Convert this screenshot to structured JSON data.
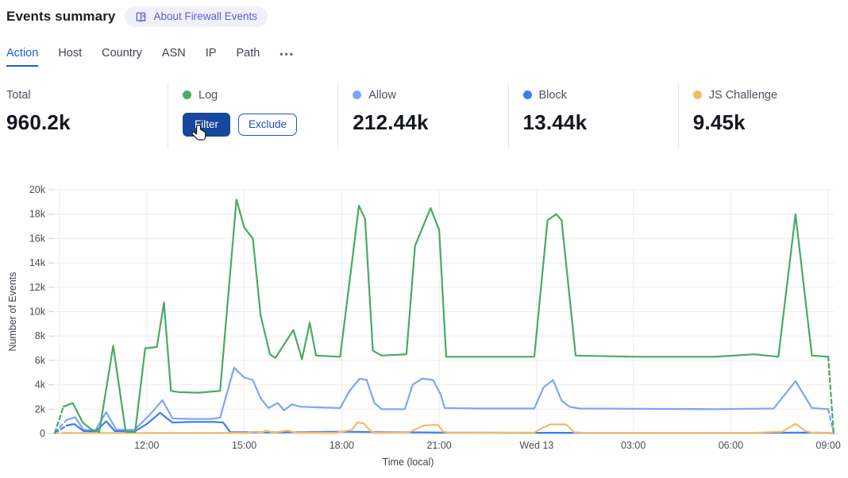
{
  "header": {
    "title": "Events summary",
    "about_label": "About Firewall Events"
  },
  "tabs": {
    "items": [
      {
        "label": "Action",
        "active": true
      },
      {
        "label": "Host",
        "active": false
      },
      {
        "label": "Country",
        "active": false
      },
      {
        "label": "ASN",
        "active": false
      },
      {
        "label": "IP",
        "active": false
      },
      {
        "label": "Path",
        "active": false
      }
    ],
    "more": "•••"
  },
  "stats": {
    "cards": [
      {
        "id": "total",
        "label": "Total",
        "value": "960.2k"
      },
      {
        "id": "log",
        "label": "Log",
        "dot_color": "#47ab63",
        "buttons": [
          {
            "id": "filter",
            "label": "Filter",
            "style": "primary"
          },
          {
            "id": "exclude",
            "label": "Exclude",
            "style": "secondary"
          }
        ],
        "cursor": true
      },
      {
        "id": "allow",
        "label": "Allow",
        "value": "212.44k",
        "dot_color": "#7ea6f2"
      },
      {
        "id": "block",
        "label": "Block",
        "value": "13.44k",
        "dot_color": "#3c7ff0"
      },
      {
        "id": "js-challenge",
        "label": "JS Challenge",
        "value": "9.45k",
        "dot_color": "#f1bb69"
      }
    ]
  },
  "chart_data": {
    "type": "line",
    "xlabel": "Time (local)",
    "ylabel": "Number of Events",
    "ylim": [
      0,
      20000
    ],
    "grid": true,
    "y_ticks": [
      {
        "label": "0",
        "v": 0
      },
      {
        "label": "2k",
        "v": 2
      },
      {
        "label": "4k",
        "v": 4
      },
      {
        "label": "6k",
        "v": 6
      },
      {
        "label": "8k",
        "v": 8
      },
      {
        "label": "10k",
        "v": 10
      },
      {
        "label": "12k",
        "v": 12
      },
      {
        "label": "14k",
        "v": 14
      },
      {
        "label": "16k",
        "v": 16
      },
      {
        "label": "18k",
        "v": 18
      },
      {
        "label": "20k",
        "v": 20
      }
    ],
    "x_ticks": [
      {
        "label": "12:00",
        "f": 0.119
      },
      {
        "label": "15:00",
        "f": 0.244
      },
      {
        "label": "18:00",
        "f": 0.369
      },
      {
        "label": "21:00",
        "f": 0.494
      },
      {
        "label": "Wed 13",
        "f": 0.619
      },
      {
        "label": "03:00",
        "f": 0.743
      },
      {
        "label": "06:00",
        "f": 0.868
      },
      {
        "label": "09:00",
        "f": 0.993
      }
    ],
    "extra_vertical_gridlines": [
      0.007
    ],
    "series": [
      {
        "id": "allow",
        "name": "Allow",
        "color": "#7ea6f2",
        "pre_dashed": [
          [
            0.001,
            0.1
          ],
          [
            0.016,
            1.1
          ]
        ],
        "points": [
          [
            0.016,
            1.1
          ],
          [
            0.027,
            1.35
          ],
          [
            0.038,
            0.3
          ],
          [
            0.053,
            0.25
          ],
          [
            0.067,
            1.76
          ],
          [
            0.08,
            0.3
          ],
          [
            0.103,
            0.3
          ],
          [
            0.119,
            1.3
          ],
          [
            0.128,
            1.9
          ],
          [
            0.139,
            2.74
          ],
          [
            0.152,
            1.24
          ],
          [
            0.175,
            1.2
          ],
          [
            0.201,
            1.2
          ],
          [
            0.213,
            1.3
          ],
          [
            0.231,
            5.4
          ],
          [
            0.244,
            4.6
          ],
          [
            0.255,
            4.4
          ],
          [
            0.265,
            2.9
          ],
          [
            0.275,
            2.1
          ],
          [
            0.287,
            2.5
          ],
          [
            0.295,
            1.9
          ],
          [
            0.305,
            2.4
          ],
          [
            0.316,
            2.2
          ],
          [
            0.338,
            2.15
          ],
          [
            0.367,
            2.1
          ],
          [
            0.379,
            3.5
          ],
          [
            0.392,
            4.5
          ],
          [
            0.401,
            4.4
          ],
          [
            0.411,
            2.5
          ],
          [
            0.42,
            2.0
          ],
          [
            0.45,
            2.0
          ],
          [
            0.46,
            4.0
          ],
          [
            0.472,
            4.5
          ],
          [
            0.486,
            4.4
          ],
          [
            0.496,
            3.2
          ],
          [
            0.501,
            2.1
          ],
          [
            0.542,
            2.05
          ],
          [
            0.616,
            2.05
          ],
          [
            0.628,
            3.8
          ],
          [
            0.64,
            4.4
          ],
          [
            0.651,
            2.7
          ],
          [
            0.661,
            2.2
          ],
          [
            0.674,
            2.05
          ],
          [
            0.847,
            2.0
          ],
          [
            0.923,
            2.05
          ],
          [
            0.951,
            4.3
          ],
          [
            0.972,
            2.1
          ],
          [
            0.993,
            2.0
          ]
        ],
        "post_dashed": [
          [
            0.993,
            2.0
          ],
          [
            1.0,
            0
          ]
        ]
      },
      {
        "id": "block",
        "name": "Block",
        "color": "#3c7ff0",
        "pre_dashed": [
          [
            0.001,
            0.05
          ],
          [
            0.016,
            0.65
          ]
        ],
        "points": [
          [
            0.016,
            0.65
          ],
          [
            0.026,
            0.78
          ],
          [
            0.038,
            0.2
          ],
          [
            0.053,
            0.15
          ],
          [
            0.067,
            1.0
          ],
          [
            0.078,
            0.2
          ],
          [
            0.103,
            0.15
          ],
          [
            0.119,
            0.78
          ],
          [
            0.136,
            1.7
          ],
          [
            0.152,
            0.9
          ],
          [
            0.175,
            0.95
          ],
          [
            0.206,
            0.95
          ],
          [
            0.217,
            0.9
          ],
          [
            0.226,
            0.12
          ],
          [
            0.287,
            0.1
          ],
          [
            0.367,
            0.15
          ],
          [
            0.42,
            0.12
          ],
          [
            0.503,
            0.08
          ],
          [
            0.616,
            0.06
          ],
          [
            0.745,
            0.06
          ],
          [
            0.898,
            0.05
          ],
          [
            0.951,
            0.08
          ],
          [
            0.993,
            0.06
          ]
        ],
        "post_dashed": [
          [
            0.993,
            0.06
          ],
          [
            1.0,
            0
          ]
        ]
      },
      {
        "id": "js-challenge",
        "name": "JS Challenge",
        "color": "#f1bb69",
        "pre_dashed": [
          [
            0.001,
            0.02
          ],
          [
            0.016,
            0.05
          ]
        ],
        "points": [
          [
            0.016,
            0.05
          ],
          [
            0.103,
            0.04
          ],
          [
            0.15,
            0.05
          ],
          [
            0.226,
            0.05
          ],
          [
            0.248,
            0.06
          ],
          [
            0.254,
            0.15
          ],
          [
            0.26,
            0.15
          ],
          [
            0.266,
            0.06
          ],
          [
            0.27,
            0.2
          ],
          [
            0.275,
            0.2
          ],
          [
            0.281,
            0.06
          ],
          [
            0.3,
            0.25
          ],
          [
            0.31,
            0.08
          ],
          [
            0.36,
            0.06
          ],
          [
            0.382,
            0.3
          ],
          [
            0.389,
            0.9
          ],
          [
            0.397,
            0.85
          ],
          [
            0.406,
            0.2
          ],
          [
            0.412,
            0.07
          ],
          [
            0.455,
            0.1
          ],
          [
            0.474,
            0.65
          ],
          [
            0.481,
            0.7
          ],
          [
            0.493,
            0.7
          ],
          [
            0.499,
            0.15
          ],
          [
            0.506,
            0.07
          ],
          [
            0.616,
            0.07
          ],
          [
            0.623,
            0.35
          ],
          [
            0.636,
            0.75
          ],
          [
            0.657,
            0.75
          ],
          [
            0.667,
            0.1
          ],
          [
            0.68,
            0.06
          ],
          [
            0.745,
            0.06
          ],
          [
            0.898,
            0.06
          ],
          [
            0.934,
            0.15
          ],
          [
            0.951,
            0.8
          ],
          [
            0.964,
            0.2
          ],
          [
            0.972,
            0.07
          ],
          [
            0.993,
            0.05
          ]
        ],
        "post_dashed": [
          [
            0.993,
            0.05
          ],
          [
            1.0,
            0.02
          ]
        ]
      },
      {
        "id": "log",
        "name": "Log",
        "color": "#47ab63",
        "pre_dashed": [
          [
            0.001,
            0.05
          ],
          [
            0.012,
            2.2
          ]
        ],
        "points": [
          [
            0.012,
            2.2
          ],
          [
            0.024,
            2.5
          ],
          [
            0.037,
            0.9
          ],
          [
            0.048,
            0.33
          ],
          [
            0.058,
            0.13
          ],
          [
            0.076,
            7.2
          ],
          [
            0.092,
            0.15
          ],
          [
            0.104,
            0.12
          ],
          [
            0.117,
            7.0
          ],
          [
            0.132,
            7.1
          ],
          [
            0.141,
            10.75
          ],
          [
            0.15,
            3.5
          ],
          [
            0.16,
            3.4
          ],
          [
            0.185,
            3.35
          ],
          [
            0.213,
            3.5
          ],
          [
            0.234,
            19.2
          ],
          [
            0.244,
            16.9
          ],
          [
            0.255,
            16.0
          ],
          [
            0.265,
            9.7
          ],
          [
            0.277,
            6.5
          ],
          [
            0.284,
            6.2
          ],
          [
            0.307,
            8.5
          ],
          [
            0.318,
            6.1
          ],
          [
            0.328,
            9.1
          ],
          [
            0.336,
            6.4
          ],
          [
            0.367,
            6.3
          ],
          [
            0.384,
            15.0
          ],
          [
            0.391,
            18.7
          ],
          [
            0.399,
            17.6
          ],
          [
            0.409,
            6.8
          ],
          [
            0.42,
            6.4
          ],
          [
            0.452,
            6.5
          ],
          [
            0.463,
            15.4
          ],
          [
            0.483,
            18.5
          ],
          [
            0.494,
            16.7
          ],
          [
            0.503,
            6.3
          ],
          [
            0.56,
            6.3
          ],
          [
            0.616,
            6.3
          ],
          [
            0.633,
            17.5
          ],
          [
            0.644,
            18.0
          ],
          [
            0.651,
            17.5
          ],
          [
            0.669,
            6.4
          ],
          [
            0.745,
            6.3
          ],
          [
            0.847,
            6.3
          ],
          [
            0.898,
            6.5
          ],
          [
            0.929,
            6.3
          ],
          [
            0.951,
            18.0
          ],
          [
            0.972,
            6.4
          ],
          [
            0.993,
            6.3
          ]
        ],
        "post_dashed": [
          [
            0.993,
            6.3
          ],
          [
            1.0,
            0
          ]
        ]
      }
    ]
  }
}
